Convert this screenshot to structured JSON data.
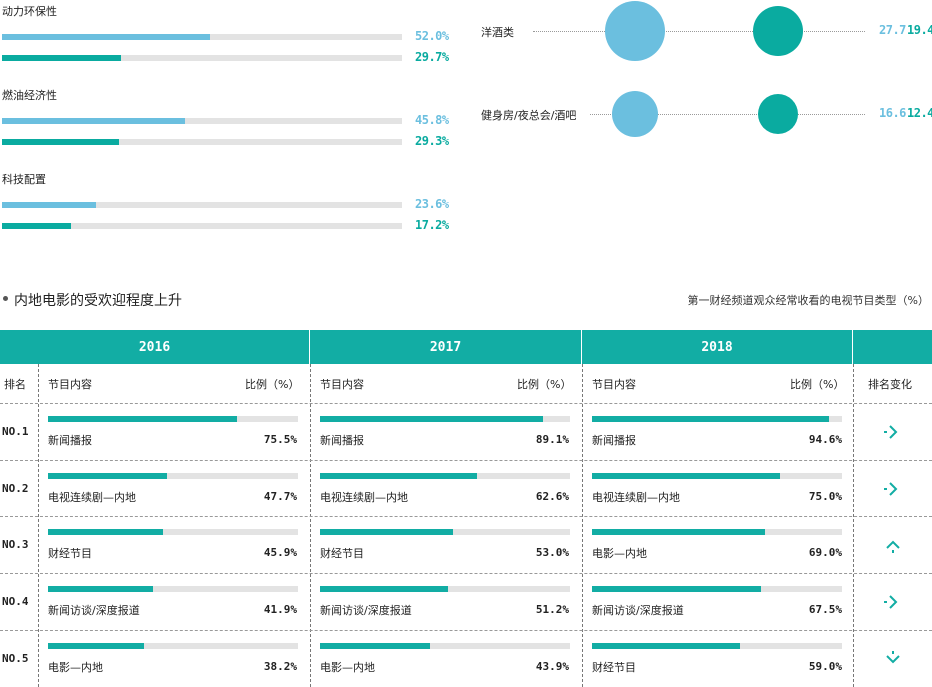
{
  "colors": {
    "light": "#6bbfdf",
    "teal": "#0aaba0",
    "header": "#12ada4",
    "track": "#e3e3e3"
  },
  "chart_data": [
    {
      "type": "bar",
      "categories": [
        "动力环保性",
        "燃油经济性",
        "科技配置"
      ],
      "series": [
        {
          "values": [
            52.0,
            45.8,
            23.6
          ],
          "labels": [
            "52.0%",
            "45.8%",
            "23.6%"
          ]
        },
        {
          "values": [
            29.7,
            29.3,
            17.2
          ],
          "labels": [
            "29.7%",
            "29.3%",
            "17.2%"
          ]
        }
      ],
      "ylim": [
        0,
        100
      ]
    },
    {
      "type": "scatter",
      "categories": [
        "洋酒类",
        "健身房/夜总会/酒吧"
      ],
      "series": [
        {
          "values": [
            27.7,
            16.6
          ],
          "labels": [
            "27.7",
            "16.6"
          ]
        },
        {
          "values": [
            19.4,
            12.4
          ],
          "labels": [
            "19.4",
            "12.4"
          ]
        }
      ]
    },
    {
      "type": "table",
      "title": "内地电影的受欢迎程度上升",
      "subtitle": "第一财经频道观众经常收看的电视节目类型（%）",
      "rank_header": "排名",
      "content_header": "节目内容",
      "ratio_header": "比例（%）",
      "change_header": "排名变化",
      "ranks": [
        "NO.1",
        "NO.2",
        "NO.3",
        "NO.4",
        "NO.5"
      ],
      "years": [
        {
          "year": "2016",
          "rows": [
            {
              "name": "新闻播报",
              "value": 75.5,
              "label": "75.5%"
            },
            {
              "name": "电视连续剧—内地",
              "value": 47.7,
              "label": "47.7%"
            },
            {
              "name": "财经节目",
              "value": 45.9,
              "label": "45.9%"
            },
            {
              "name": "新闻访谈/深度报道",
              "value": 41.9,
              "label": "41.9%"
            },
            {
              "name": "电影—内地",
              "value": 38.2,
              "label": "38.2%"
            }
          ]
        },
        {
          "year": "2017",
          "rows": [
            {
              "name": "新闻播报",
              "value": 89.1,
              "label": "89.1%"
            },
            {
              "name": "电视连续剧—内地",
              "value": 62.6,
              "label": "62.6%"
            },
            {
              "name": "财经节目",
              "value": 53.0,
              "label": "53.0%"
            },
            {
              "name": "新闻访谈/深度报道",
              "value": 51.2,
              "label": "51.2%"
            },
            {
              "name": "电影—内地",
              "value": 43.9,
              "label": "43.9%"
            }
          ]
        },
        {
          "year": "2018",
          "rows": [
            {
              "name": "新闻播报",
              "value": 94.6,
              "label": "94.6%"
            },
            {
              "name": "电视连续剧—内地",
              "value": 75.0,
              "label": "75.0%"
            },
            {
              "name": "电影—内地",
              "value": 69.0,
              "label": "69.0%"
            },
            {
              "name": "新闻访谈/深度报道",
              "value": 67.5,
              "label": "67.5%"
            },
            {
              "name": "财经节目",
              "value": 59.0,
              "label": "59.0%"
            }
          ]
        }
      ],
      "rank_changes": [
        "same",
        "same",
        "up",
        "same",
        "down"
      ],
      "xlim": [
        0,
        100
      ]
    }
  ]
}
